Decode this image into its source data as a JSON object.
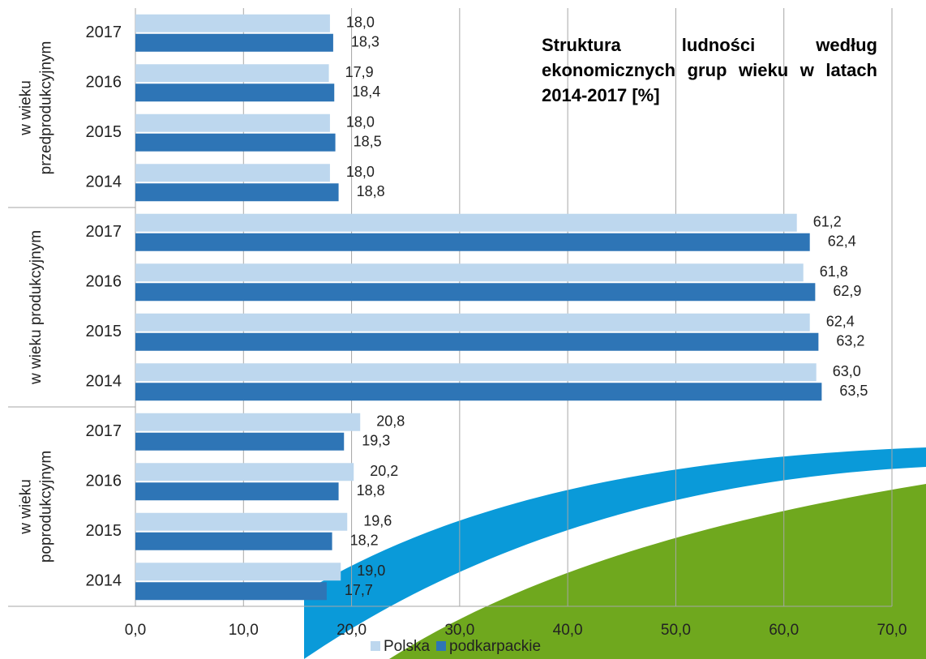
{
  "chart_data": {
    "type": "bar",
    "title": "Struktura ludności według ekonomicznych grup wieku w latach 2014-2017 [%]",
    "groups": [
      {
        "label": [
          "w wieku",
          "przedprodukcyjnym"
        ],
        "categories": [
          "2017",
          "2016",
          "2015",
          "2014"
        ]
      },
      {
        "label": [
          "w wieku produkcyjnym"
        ],
        "categories": [
          "2017",
          "2016",
          "2015",
          "2014"
        ]
      },
      {
        "label": [
          "w wieku",
          "poprodukcyjnym"
        ],
        "categories": [
          "2017",
          "2016",
          "2015",
          "2014"
        ]
      }
    ],
    "series": [
      {
        "name": "Polska",
        "color": "#bdd7ee",
        "values": [
          18.0,
          17.9,
          18.0,
          18.0,
          61.2,
          61.8,
          62.4,
          63.0,
          20.8,
          20.2,
          19.6,
          19.0
        ],
        "value_labels": [
          "18,0",
          "17,9",
          "18,0",
          "18,0",
          "61,2",
          "61,8",
          "62,4",
          "63,0",
          "20,8",
          "20,2",
          "19,6",
          "19,0"
        ]
      },
      {
        "name": "podkarpackie",
        "color": "#2e75b6",
        "values": [
          18.3,
          18.4,
          18.5,
          18.8,
          62.4,
          62.9,
          63.2,
          63.5,
          19.3,
          18.8,
          18.2,
          17.7
        ],
        "value_labels": [
          "18,3",
          "18,4",
          "18,5",
          "18,8",
          "62,4",
          "62,9",
          "63,2",
          "63,5",
          "19,3",
          "18,8",
          "18,2",
          "17,7"
        ]
      }
    ],
    "xlim": [
      0,
      70
    ],
    "xticks": [
      {
        "value": 0,
        "label": "0,0"
      },
      {
        "value": 10,
        "label": "10,0"
      },
      {
        "value": 20,
        "label": "20,0"
      },
      {
        "value": 30,
        "label": "30,0"
      },
      {
        "value": 40,
        "label": "40,0"
      },
      {
        "value": 50,
        "label": "50,0"
      },
      {
        "value": 60,
        "label": "60,0"
      },
      {
        "value": 70,
        "label": "70,0"
      }
    ],
    "grid": true
  }
}
